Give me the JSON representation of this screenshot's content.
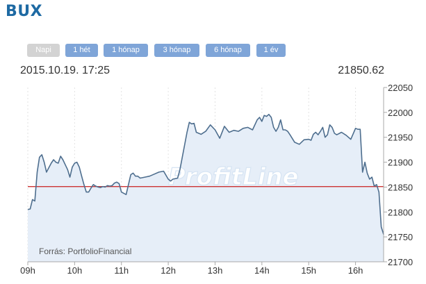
{
  "title": "BUX",
  "range_buttons": [
    {
      "label": "Napi",
      "disabled": true
    },
    {
      "label": "1 hét",
      "disabled": false
    },
    {
      "label": "1 hónap",
      "disabled": false
    },
    {
      "label": "3 hónap",
      "disabled": false
    },
    {
      "label": "6 hónap",
      "disabled": false
    },
    {
      "label": "1 év",
      "disabled": false
    }
  ],
  "info": {
    "datetime": "2015.10.19. 17:25",
    "value": "21850.62"
  },
  "colors": {
    "line": "#4e6e8e",
    "area": "#e6eef8",
    "reference_line": "#cc3333",
    "button": "#7fa5d8",
    "button_disabled": "#d3d3d3",
    "title": "#1e6aa3"
  },
  "chart_data": {
    "type": "area",
    "title": "",
    "xlabel": "",
    "ylabel": "",
    "x_ticks": [
      "09h",
      "10h",
      "11h",
      "12h",
      "13h",
      "14h",
      "15h",
      "16h"
    ],
    "y_ticks": [
      21700,
      21750,
      21800,
      21850,
      21900,
      21950,
      22000,
      22050
    ],
    "ylim": [
      21700,
      22050
    ],
    "xlim": [
      9.0,
      16.6
    ],
    "reference_value": 21851,
    "watermark": "ProfitLine",
    "source": "Forrás: PortfolioFinancial",
    "series": [
      {
        "x": [
          9.0,
          9.05,
          9.1,
          9.15,
          9.2,
          9.25,
          9.3,
          9.35,
          9.4,
          9.5,
          9.55,
          9.6,
          9.65,
          9.7,
          9.75,
          9.8,
          9.85,
          9.9,
          9.95,
          10.0,
          10.05,
          10.1,
          10.15,
          10.2,
          10.25,
          10.3,
          10.35,
          10.4,
          10.45,
          10.5,
          10.55,
          10.6,
          10.65,
          10.7,
          10.75,
          10.8,
          10.85,
          10.9,
          10.95,
          11.0,
          11.1,
          11.2,
          11.25,
          11.3,
          11.35,
          11.4,
          11.5,
          11.6,
          11.7,
          11.8,
          11.9,
          12.0,
          12.05,
          12.1,
          12.2,
          12.25,
          12.3,
          12.35,
          12.4,
          12.45,
          12.5,
          12.55,
          12.6,
          12.7,
          12.8,
          12.9,
          13.0,
          13.1,
          13.2,
          13.3,
          13.35,
          13.4,
          13.5,
          13.6,
          13.7,
          13.8,
          13.9,
          13.95,
          14.0,
          14.05,
          14.1,
          14.15,
          14.2,
          14.25,
          14.3,
          14.35,
          14.4,
          14.45,
          14.5,
          14.55,
          14.6,
          14.7,
          14.8,
          14.9,
          15.0,
          15.05,
          15.1,
          15.15,
          15.2,
          15.25,
          15.3,
          15.35,
          15.4,
          15.45,
          15.5,
          15.55,
          15.6,
          15.7,
          15.8,
          15.9,
          16.0,
          16.05,
          16.1,
          16.15,
          16.2,
          16.25,
          16.3,
          16.35,
          16.4,
          16.45,
          16.5,
          16.55,
          16.6
        ],
        "y": [
          21805,
          21806,
          21825,
          21822,
          21880,
          21910,
          21915,
          21900,
          21880,
          21898,
          21905,
          21900,
          21898,
          21912,
          21905,
          21895,
          21885,
          21870,
          21890,
          21898,
          21900,
          21890,
          21872,
          21855,
          21840,
          21840,
          21848,
          21855,
          21852,
          21850,
          21849,
          21851,
          21850,
          21853,
          21852,
          21853,
          21858,
          21860,
          21857,
          21840,
          21835,
          21875,
          21878,
          21872,
          21872,
          21868,
          21870,
          21872,
          21876,
          21880,
          21882,
          21866,
          21862,
          21866,
          21868,
          21885,
          21910,
          21935,
          21960,
          21980,
          21977,
          21978,
          21960,
          21956,
          21962,
          21975,
          21965,
          21948,
          21972,
          21960,
          21962,
          21964,
          21962,
          21968,
          21970,
          21965,
          21985,
          21990,
          21982,
          21994,
          21992,
          21996,
          21990,
          21970,
          21962,
          21970,
          21985,
          21965,
          21965,
          21962,
          21955,
          21940,
          21936,
          21945,
          21946,
          21944,
          21956,
          21960,
          21955,
          21962,
          21970,
          21950,
          21955,
          21975,
          21970,
          21958,
          21955,
          21960,
          21954,
          21946,
          21968,
          21966,
          21966,
          21880,
          21900,
          21878,
          21866,
          21870,
          21852,
          21855,
          21840,
          21770,
          21755
        ]
      }
    ]
  }
}
